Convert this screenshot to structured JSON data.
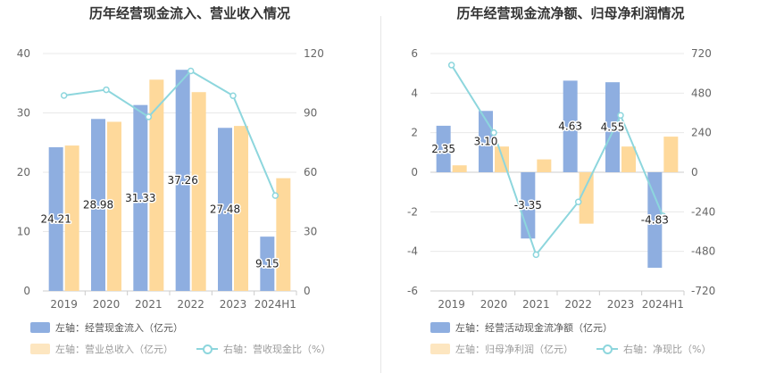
{
  "charts": {
    "left": {
      "title": "历年经营现金流入、营业收入情况",
      "legend": {
        "bar1": "左轴：经营现金流入（亿元）",
        "bar2": "左轴：营业总收入（亿元）",
        "line": "右轴：营收现金比（%）"
      }
    },
    "right": {
      "title": "历年经营现金流净额、归母净利润情况",
      "legend": {
        "bar1": "左轴：经营活动现金流净额（亿元）",
        "bar2": "左轴：归母净利润（亿元）",
        "line": "右轴：净现比（%）"
      }
    }
  },
  "chart_data": [
    {
      "type": "bar",
      "title": "历年经营现金流入、营业收入情况",
      "categories": [
        "2019",
        "2020",
        "2021",
        "2022",
        "2023",
        "2024H1"
      ],
      "series": [
        {
          "name": "左轴：经营现金流入（亿元）",
          "axis": "left",
          "values": [
            24.21,
            28.98,
            31.33,
            37.26,
            27.48,
            9.15
          ],
          "labels": [
            "24.21",
            "28.98",
            "31.33",
            "37.26",
            "27.48",
            "9.15"
          ],
          "color": "#8eaee0"
        },
        {
          "name": "左轴：营业总收入（亿元）",
          "axis": "left",
          "values": [
            24.5,
            28.5,
            35.6,
            33.5,
            27.8,
            19.0
          ],
          "color": "#fed99b"
        },
        {
          "name": "右轴：营收现金比（%）",
          "axis": "right",
          "type": "line",
          "values": [
            98.8,
            101.7,
            88.0,
            111.2,
            98.7,
            48.2
          ],
          "color": "#8dd6dd"
        }
      ],
      "yleft": {
        "ylim": [
          0,
          40
        ],
        "ticks": [
          0,
          10,
          20,
          30,
          40
        ]
      },
      "yright": {
        "ylim": [
          0,
          120
        ],
        "ticks": [
          0,
          30,
          60,
          90,
          120
        ]
      },
      "grid": true,
      "legend_position": "bottom-left"
    },
    {
      "type": "bar",
      "title": "历年经营现金流净额、归母净利润情况",
      "categories": [
        "2019",
        "2020",
        "2021",
        "2022",
        "2023",
        "2024H1"
      ],
      "series": [
        {
          "name": "左轴：经营活动现金流净额（亿元）",
          "axis": "left",
          "values": [
            2.35,
            3.1,
            -3.35,
            4.63,
            4.55,
            -4.83
          ],
          "labels": [
            "2.35",
            "3.10",
            "-3.35",
            "4.63",
            "4.55",
            "-4.83"
          ],
          "color": "#8eaee0"
        },
        {
          "name": "左轴：归母净利润（亿元）",
          "axis": "left",
          "values": [
            0.35,
            1.3,
            0.65,
            -2.6,
            1.3,
            1.8
          ],
          "color": "#fed99b"
        },
        {
          "name": "右轴：净现比（%）",
          "axis": "right",
          "type": "line",
          "values": [
            650,
            240,
            -500,
            -180,
            345,
            -265
          ],
          "color": "#8dd6dd"
        }
      ],
      "yleft": {
        "ylim": [
          -6,
          6
        ],
        "ticks": [
          -6,
          -4,
          -2,
          0,
          2,
          4,
          6
        ]
      },
      "yright": {
        "ylim": [
          -720,
          720
        ],
        "ticks": [
          -720,
          -480,
          -240,
          0,
          240,
          480,
          720
        ]
      },
      "grid": true,
      "legend_position": "bottom-left"
    }
  ]
}
